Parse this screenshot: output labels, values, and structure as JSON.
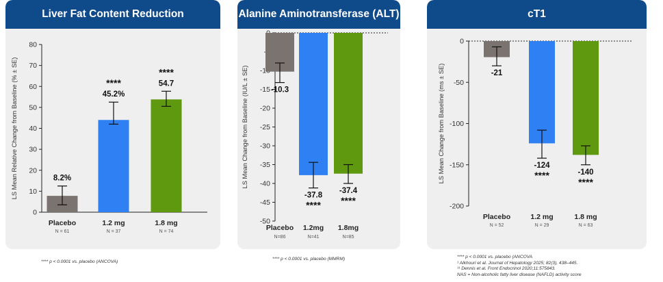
{
  "chart_data": [
    {
      "type": "bar",
      "title": "Liver Fat Content Reduction",
      "ylabel": "LS Mean Relative Change from Baseline (% ± SE)",
      "ylim": [
        0,
        80
      ],
      "yticks": [
        "0",
        "10",
        "20",
        "30",
        "40",
        "50",
        "60",
        "70",
        "80"
      ],
      "categories": [
        "Placebo",
        "1.2 mg",
        "1.8 mg"
      ],
      "n_labels": [
        "N = 61",
        "N = 37",
        "N = 74"
      ],
      "values": [
        8.2,
        45.2,
        54.7
      ],
      "bar_heights": [
        7.8,
        44.0,
        53.8
      ],
      "error_low": [
        3.5,
        42.0,
        50.5
      ],
      "error_high": [
        12.5,
        52.5,
        57.7
      ],
      "value_labels": [
        "8.2%",
        "45.2%",
        "54.7"
      ],
      "significance": [
        "",
        "****",
        "****"
      ],
      "colors": [
        "#7a7370",
        "#2f80f2",
        "#5f990f"
      ],
      "label_position": "above",
      "grid": false
    },
    {
      "type": "bar",
      "title": "Alanine Aminotransferase (ALT)",
      "ylabel": "LS Mean Change from Baseline (IU/L ± SE)",
      "ylim": [
        -50,
        0
      ],
      "yticks": [
        "0",
        "-5",
        "-10",
        "-15",
        "-20",
        "-25",
        "-30",
        "-35",
        "-40",
        "-45",
        "-50"
      ],
      "categories": [
        "Placebo",
        "1.2mg",
        "1.8mg"
      ],
      "n_labels": [
        "N=86",
        "N=41",
        "N=85"
      ],
      "values": [
        -10.3,
        -37.8,
        -37.4
      ],
      "bar_heights": [
        -10.3,
        -37.8,
        -37.4
      ],
      "error_low": [
        -13.2,
        -41.2,
        -40.0
      ],
      "error_high": [
        -8.0,
        -34.4,
        -35.0
      ],
      "value_labels": [
        "-10.3",
        "-37.8",
        "-37.4"
      ],
      "significance": [
        "",
        "****",
        "****"
      ],
      "colors": [
        "#7a7370",
        "#2f80f2",
        "#5f990f"
      ],
      "label_position": "below",
      "grid": false
    },
    {
      "type": "bar",
      "title": "cT1",
      "ylabel": "LS Mean Change from Baseline (ms ± SE)",
      "ylim": [
        -200,
        0
      ],
      "yticks": [
        "0",
        "-50",
        "-100",
        "-150",
        "-200"
      ],
      "categories": [
        "Placebo",
        "1.2 mg",
        "1.8 mg"
      ],
      "n_labels": [
        "N = 52",
        "N = 29",
        "N = 63"
      ],
      "values": [
        -21,
        -124,
        -140
      ],
      "bar_heights": [
        -19.5,
        -124,
        -138
      ],
      "error_low": [
        -30,
        -142,
        -150
      ],
      "error_high": [
        -7,
        -108,
        -127
      ],
      "value_labels": [
        "-21",
        "-124",
        "-140"
      ],
      "significance": [
        "",
        "****",
        "****"
      ],
      "colors": [
        "#7a7370",
        "#2f80f2",
        "#5f990f"
      ],
      "label_position": "below",
      "grid": false
    }
  ],
  "footnotes": {
    "panel1": "**** p < 0.0001 vs. placebo (ANCOVA)",
    "panel2": "**** p < 0.0001 vs. placebo (MMRM)",
    "panel3": [
      "**** p  < 0.0001   vs. placebo (ANCOVA",
      "¹ Alkhouri et al. Journal of Hepatology 2025; 82(3), 438–445.",
      "¹¹ Dennis et al. Front Endocrinol 2020;11:575843.",
      "NAS = Non-alcoholic fatty liver disease (NAFLD) activity score"
    ]
  }
}
